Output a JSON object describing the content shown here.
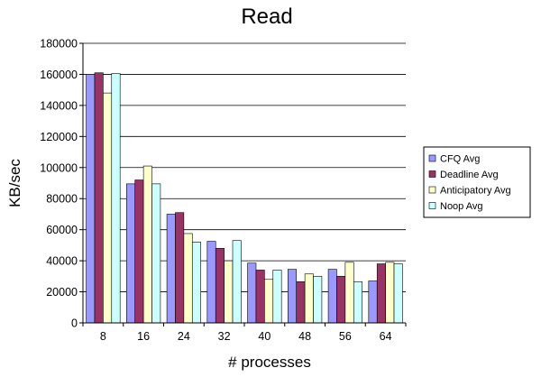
{
  "chart_data": {
    "type": "bar",
    "title": "Read",
    "xlabel": "# processes",
    "ylabel": "KB/sec",
    "categories": [
      "8",
      "16",
      "24",
      "32",
      "40",
      "48",
      "56",
      "64"
    ],
    "ylim": [
      0,
      180000
    ],
    "yticks": [
      "0",
      "20000",
      "40000",
      "60000",
      "80000",
      "100000",
      "120000",
      "140000",
      "160000",
      "180000"
    ],
    "grid": true,
    "legend_position": "right",
    "series": [
      {
        "name": "CFQ Avg",
        "color": "#9999ff",
        "values": [
          160000,
          89500,
          70000,
          52500,
          38500,
          34500,
          34500,
          27000
        ]
      },
      {
        "name": "Deadline Avg",
        "color": "#993366",
        "values": [
          161000,
          92000,
          71000,
          48000,
          34000,
          26500,
          30000,
          38000
        ]
      },
      {
        "name": "Anticipatory Avg",
        "color": "#ffffcc",
        "values": [
          148000,
          101000,
          57500,
          40000,
          28000,
          31500,
          39000,
          39000
        ]
      },
      {
        "name": "Noop Avg",
        "color": "#ccffff",
        "values": [
          160500,
          89500,
          52000,
          53000,
          34000,
          30000,
          26500,
          38000
        ]
      }
    ]
  }
}
